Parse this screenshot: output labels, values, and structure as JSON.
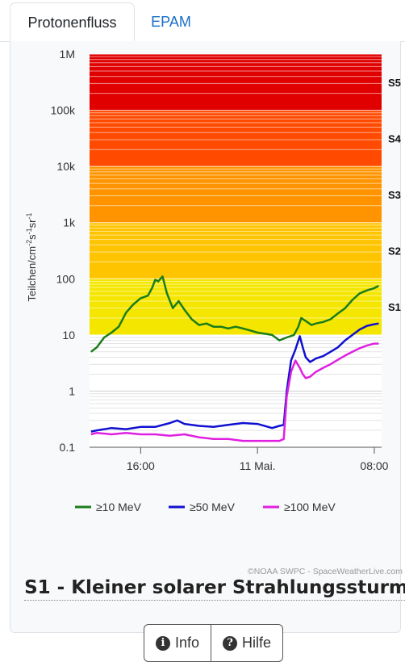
{
  "tabs": [
    {
      "label": "Protonenfluss",
      "active": true
    },
    {
      "label": "EPAM",
      "active": false
    }
  ],
  "chart_data": {
    "type": "line",
    "ylabel_parts": [
      "Teilchen/cm",
      "-2",
      "s",
      "-1",
      "sr",
      "-1"
    ],
    "yscale": "log",
    "ylim": [
      0.1,
      1000000
    ],
    "ytick_labels": [
      "0.1",
      "1",
      "10",
      "100",
      "1k",
      "10k",
      "100k",
      "1M"
    ],
    "ytick_values": [
      0.1,
      1,
      10,
      100,
      1000,
      10000,
      100000,
      1000000
    ],
    "xtick_labels": [
      "16:00",
      "11 Mai.",
      "08:00"
    ],
    "xtick_values": [
      16,
      24,
      32
    ],
    "xlim": [
      12.5,
      32.5
    ],
    "scale_labels": [
      "S1",
      "S2",
      "S3",
      "S4",
      "S5"
    ],
    "bands": [
      {
        "name": "S1",
        "from": 10,
        "to": 100,
        "color": "#f5e600"
      },
      {
        "name": "S2",
        "from": 100,
        "to": 1000,
        "color": "#ffc400"
      },
      {
        "name": "S3",
        "from": 1000,
        "to": 10000,
        "color": "#ff9400"
      },
      {
        "name": "S4",
        "from": 10000,
        "to": 100000,
        "color": "#ff4a00"
      },
      {
        "name": "S5",
        "from": 100000,
        "to": 1000000,
        "color": "#e00000"
      }
    ],
    "grid": true,
    "legend_position": "bottom",
    "series": [
      {
        "name": "≥10 MeV",
        "color": "#1a7d1a",
        "x": [
          12.6,
          13.0,
          13.5,
          14.0,
          14.5,
          15.0,
          15.5,
          16.0,
          16.5,
          16.8,
          17.0,
          17.2,
          17.5,
          17.8,
          18.2,
          18.6,
          19.0,
          19.5,
          20.0,
          20.5,
          21.0,
          21.5,
          22.0,
          22.5,
          23.0,
          23.5,
          24.0,
          24.5,
          25.0,
          25.5,
          26.0,
          26.5,
          26.8,
          27.0,
          27.4,
          27.7,
          28.0,
          28.5,
          29.0,
          29.5,
          30.0,
          30.5,
          31.0,
          31.5,
          32.0,
          32.3
        ],
        "y": [
          5,
          6,
          9,
          11,
          14,
          25,
          35,
          45,
          50,
          70,
          96,
          90,
          110,
          55,
          30,
          40,
          28,
          19,
          15,
          16,
          14,
          14,
          13,
          14,
          13,
          12,
          11,
          10.5,
          10,
          8,
          9,
          10,
          14,
          20,
          17,
          15,
          16,
          17,
          19,
          24,
          30,
          42,
          55,
          62,
          68,
          75
        ]
      },
      {
        "name": "≥50 MeV",
        "color": "#1010d0",
        "x": [
          12.6,
          13.0,
          14.0,
          15.0,
          16.0,
          17.0,
          18.0,
          18.5,
          19.0,
          20.0,
          21.0,
          22.0,
          23.0,
          24.0,
          25.0,
          25.5,
          25.8,
          26.0,
          26.3,
          26.6,
          26.9,
          27.1,
          27.3,
          27.6,
          28.0,
          28.5,
          29.0,
          29.5,
          30.0,
          30.5,
          31.0,
          31.5,
          32.0,
          32.3
        ],
        "y": [
          0.19,
          0.2,
          0.22,
          0.21,
          0.23,
          0.23,
          0.27,
          0.3,
          0.26,
          0.24,
          0.23,
          0.25,
          0.27,
          0.26,
          0.22,
          0.24,
          0.25,
          1.0,
          3.5,
          5.5,
          9.5,
          6.0,
          4.0,
          3.3,
          3.8,
          4.2,
          5.0,
          6.0,
          8.0,
          10,
          12.5,
          14.5,
          15.5,
          16
        ]
      },
      {
        "name": "≥100 MeV",
        "color": "#e020e0",
        "x": [
          12.6,
          13.0,
          14.0,
          15.0,
          16.0,
          17.0,
          18.0,
          19.0,
          20.0,
          21.0,
          22.0,
          23.0,
          24.0,
          25.0,
          25.5,
          25.8,
          26.0,
          26.3,
          26.6,
          26.9,
          27.1,
          27.3,
          27.6,
          28.0,
          28.5,
          29.0,
          29.5,
          30.0,
          30.5,
          31.0,
          31.5,
          32.0,
          32.3
        ],
        "y": [
          0.17,
          0.18,
          0.17,
          0.18,
          0.17,
          0.17,
          0.16,
          0.17,
          0.15,
          0.14,
          0.14,
          0.13,
          0.13,
          0.13,
          0.13,
          0.14,
          0.8,
          2.2,
          3.5,
          2.6,
          2.0,
          1.7,
          1.8,
          2.2,
          2.6,
          3.0,
          3.6,
          4.3,
          5.0,
          5.8,
          6.5,
          7.0,
          7.0
        ]
      }
    ],
    "credit": "©NOAA SWPC - SpaceWeatherLive.com"
  },
  "status_title": "S1 - Kleiner solarer Strahlungssturm",
  "buttons": [
    {
      "label": "Info",
      "icon": "info-icon"
    },
    {
      "label": "Hilfe",
      "icon": "help-icon"
    }
  ]
}
